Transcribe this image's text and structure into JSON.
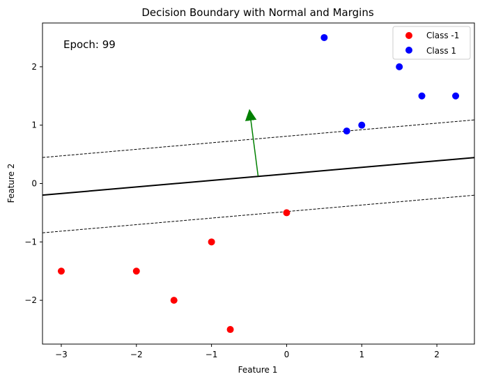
{
  "chart_data": {
    "type": "scatter",
    "title": "Decision Boundary with Normal and Margins",
    "xlabel": "Feature 1",
    "ylabel": "Feature 2",
    "xlim": [
      -3.25,
      2.5
    ],
    "ylim": [
      -2.75,
      2.75
    ],
    "x_ticks": [
      -3,
      -2,
      -1,
      0,
      1,
      2
    ],
    "y_ticks": [
      -2,
      -1,
      0,
      1,
      2
    ],
    "x_tick_labels": [
      "−3",
      "−2",
      "−1",
      "0",
      "1",
      "2"
    ],
    "y_tick_labels": [
      "−2",
      "−1",
      "0",
      "1",
      "2"
    ],
    "grid": false,
    "legend_position": "top-right",
    "annotation": "Epoch: 99",
    "series": [
      {
        "name": "Class -1",
        "color": "#ff0000",
        "points": [
          [
            -3,
            -1.5
          ],
          [
            -2,
            -1.5
          ],
          [
            -1.5,
            -2
          ],
          [
            -1,
            -1
          ],
          [
            -0.75,
            -2.5
          ],
          [
            0,
            -0.5
          ]
        ]
      },
      {
        "name": "Class 1",
        "color": "#0000ff",
        "points": [
          [
            0.5,
            2.5
          ],
          [
            0.8,
            0.9
          ],
          [
            1,
            1
          ],
          [
            1.5,
            2
          ],
          [
            1.8,
            1.5
          ],
          [
            2.25,
            1.5
          ]
        ]
      }
    ],
    "decision_boundary": {
      "slope": 0.112,
      "intercept": 0.165,
      "color": "#000000",
      "style": "solid"
    },
    "margins": [
      {
        "slope": 0.112,
        "intercept": 0.81,
        "color": "#000000",
        "style": "dashed"
      },
      {
        "slope": 0.112,
        "intercept": -0.48,
        "color": "#000000",
        "style": "dashed"
      }
    ],
    "normal_vector": {
      "start": [
        -0.38,
        0.13
      ],
      "end": [
        -0.48,
        1.12
      ],
      "color": "#008000"
    }
  }
}
